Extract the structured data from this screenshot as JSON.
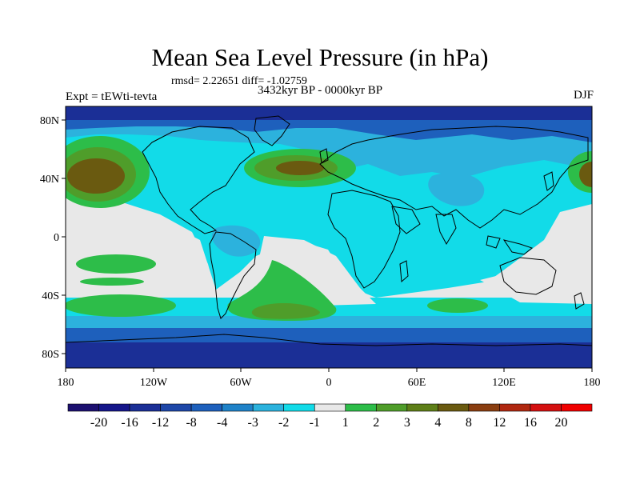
{
  "title": "Mean Sea Level Pressure (in hPa)",
  "stats": "rmsd= 2.22651 diff= -1.02759",
  "subtitle": "3432kyr BP - 0000kyr BP",
  "experiment": "Expt = tEWti-tevta",
  "season": "DJF",
  "lat_labels": [
    "80N",
    "40N",
    "0",
    "40S",
    "80S"
  ],
  "lon_labels": [
    "180",
    "120W",
    "60W",
    "0",
    "60E",
    "120E",
    "180"
  ],
  "colorbar": {
    "labels": [
      "-20",
      "-16",
      "-12",
      "-8",
      "-4",
      "-3",
      "-2",
      "-1",
      "1",
      "2",
      "3",
      "4",
      "8",
      "12",
      "16",
      "20"
    ],
    "colors": [
      "#1c1070",
      "#15168a",
      "#1b2f96",
      "#1e47a8",
      "#1e60bc",
      "#1f82c8",
      "#2cb2dd",
      "#12dbe8",
      "#e8e8e8",
      "#2dbd49",
      "#4f9d2a",
      "#5e7f18",
      "#6a5a10",
      "#8a3e10",
      "#b02810",
      "#d41010",
      "#f00000"
    ]
  },
  "palette": {
    "ocean_base": "#e8e8e8",
    "neg_light": "#12dbe8",
    "neg_mid": "#2cb2dd",
    "neg_deep": "#1e60bc",
    "neg_deeper": "#1b2f96",
    "pos_light": "#2dbd49",
    "pos_mid": "#4f9d2a",
    "pos_high": "#6a5a10",
    "coast": "#000000"
  }
}
